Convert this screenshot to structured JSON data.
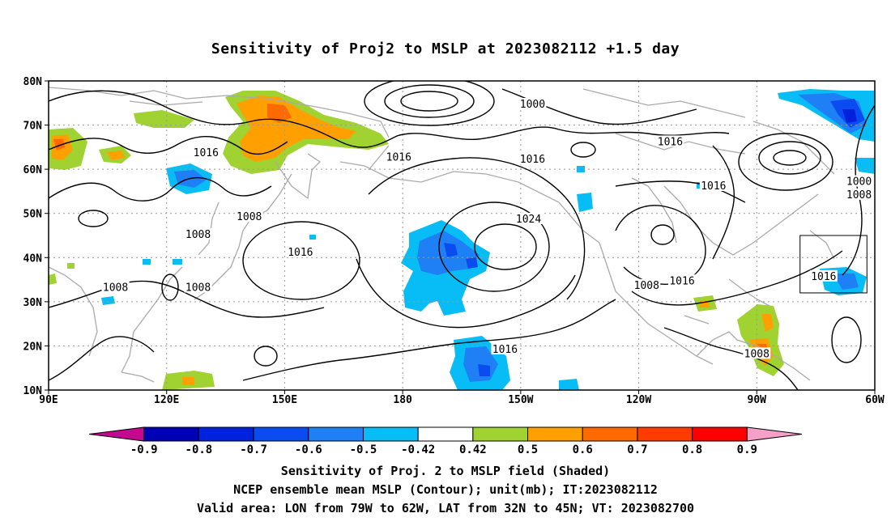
{
  "title": "Sensitivity of Proj2 to MSLP at 2023082112 +1.5 day",
  "map": {
    "lon_range": [
      90,
      300
    ],
    "lat_range": [
      10,
      80
    ],
    "lat_ticks": [
      "10N",
      "20N",
      "30N",
      "40N",
      "50N",
      "60N",
      "70N",
      "80N"
    ],
    "lon_ticks": [
      "90E",
      "120E",
      "150E",
      "180",
      "150W",
      "120W",
      "90W",
      "60W"
    ],
    "grid": "dotted",
    "valid_box": {
      "lon_w": "79W",
      "lon_e": "62W",
      "lat_s": "32N",
      "lat_n": "45N"
    },
    "contour_labels": [
      {
        "text": "1000",
        "lon": -147,
        "lat": 74.5
      },
      {
        "text": "1016",
        "lon": 130,
        "lat": 63.5
      },
      {
        "text": "1016",
        "lon": 179,
        "lat": 62.5
      },
      {
        "text": "1016",
        "lon": -147,
        "lat": 62
      },
      {
        "text": "1016",
        "lon": -112,
        "lat": 66
      },
      {
        "text": "1016",
        "lon": -101,
        "lat": 56
      },
      {
        "text": "1000",
        "lon": -64,
        "lat": 57
      },
      {
        "text": "1008",
        "lon": -64,
        "lat": 54
      },
      {
        "text": "1008",
        "lon": 141,
        "lat": 49
      },
      {
        "text": "1008",
        "lon": 128,
        "lat": 45
      },
      {
        "text": "1024",
        "lon": -148,
        "lat": 48.5
      },
      {
        "text": "1016",
        "lon": 154,
        "lat": 41
      },
      {
        "text": "1008",
        "lon": 107,
        "lat": 33
      },
      {
        "text": "1008",
        "lon": 128,
        "lat": 33
      },
      {
        "text": "1008",
        "lon": -118,
        "lat": 33.5
      },
      {
        "text": "1016",
        "lon": -109,
        "lat": 34.5
      },
      {
        "text": "1016",
        "lon": -73,
        "lat": 35.5
      },
      {
        "text": "1016",
        "lon": -154,
        "lat": 19
      },
      {
        "text": "1008",
        "lon": -90,
        "lat": 18
      }
    ]
  },
  "colorbar": {
    "labels": [
      "-0.9",
      "-0.8",
      "-0.7",
      "-0.6",
      "-0.5",
      "-0.42",
      "0.42",
      "0.5",
      "0.6",
      "0.7",
      "0.8",
      "0.9"
    ],
    "colors": [
      "#c4088f",
      "#0000b4",
      "#0022dc",
      "#0a4cf0",
      "#1f7ff5",
      "#08bdf5",
      "#ffffff",
      "#a0d232",
      "#ffa000",
      "#ff6a00",
      "#ff3c00",
      "#ff0000",
      "#f5a0c8"
    ]
  },
  "captions": [
    "Sensitivity of Proj. 2 to MSLP field (Shaded)",
    "NCEP ensemble mean MSLP (Contour); unit(mb); IT:2023082112",
    "Valid area: LON from 79W to 62W, LAT from 32N to 45N; VT: 2023082700"
  ]
}
